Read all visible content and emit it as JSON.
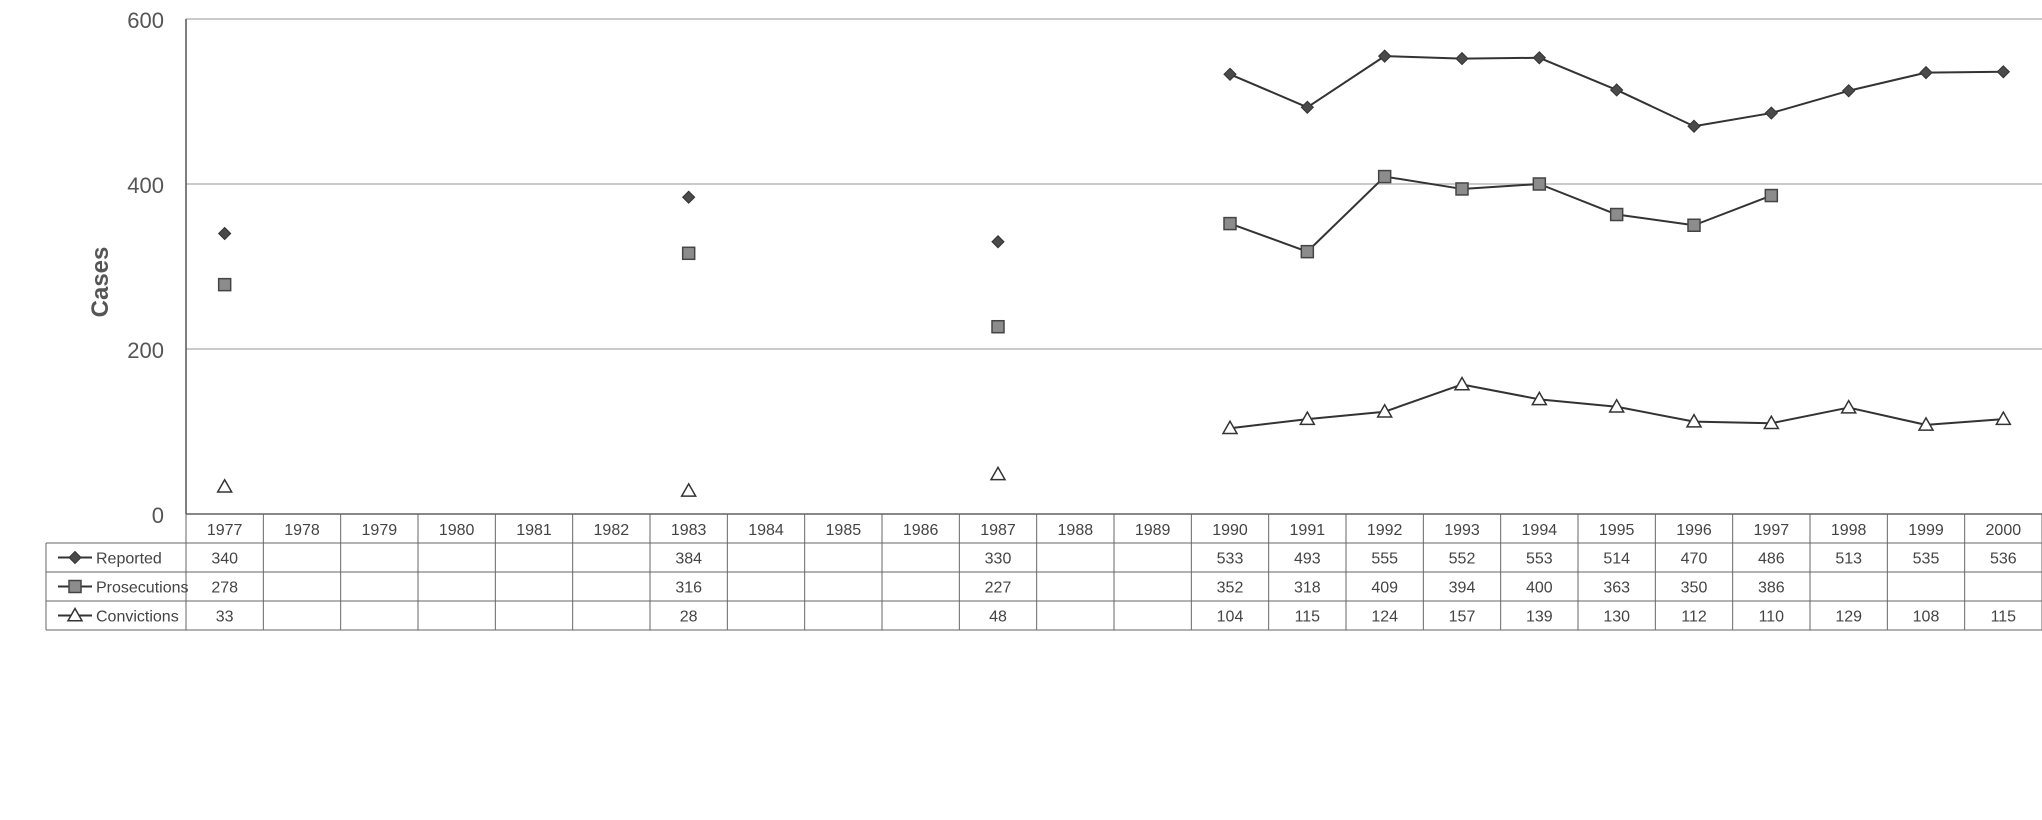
{
  "chart_data": {
    "type": "line",
    "ylabel": "Cases",
    "ylim": [
      0,
      600
    ],
    "yticks": [
      "0",
      "200",
      "400",
      "600"
    ],
    "grid": true,
    "categories": [
      "1977",
      "1978",
      "1979",
      "1980",
      "1981",
      "1982",
      "1983",
      "1984",
      "1985",
      "1986",
      "1987",
      "1988",
      "1989",
      "1990",
      "1991",
      "1992",
      "1993",
      "1994",
      "1995",
      "1996",
      "1997",
      "1998",
      "1999",
      "2000"
    ],
    "series": [
      {
        "name": "Reported",
        "marker": "diamond",
        "color": "#4a4a4a",
        "values": [
          340,
          null,
          null,
          null,
          null,
          null,
          384,
          null,
          null,
          null,
          330,
          null,
          null,
          533,
          493,
          555,
          552,
          553,
          514,
          470,
          486,
          513,
          535,
          536
        ]
      },
      {
        "name": "Prosecutions",
        "marker": "square",
        "color": "#8c8c8c",
        "values": [
          278,
          null,
          null,
          null,
          null,
          null,
          316,
          null,
          null,
          null,
          227,
          null,
          null,
          352,
          318,
          409,
          394,
          400,
          363,
          350,
          386,
          null,
          null,
          null
        ]
      },
      {
        "name": "Convictions",
        "marker": "triangle",
        "color": "#ffffff",
        "values": [
          33,
          null,
          null,
          null,
          null,
          null,
          28,
          null,
          null,
          null,
          48,
          null,
          null,
          104,
          115,
          124,
          157,
          139,
          130,
          112,
          110,
          129,
          108,
          115
        ]
      }
    ]
  }
}
